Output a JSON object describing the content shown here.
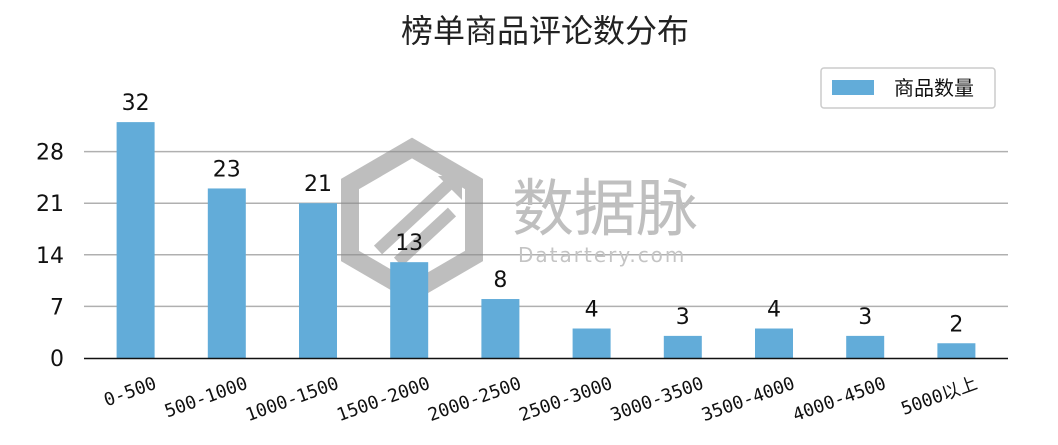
{
  "chart_data": {
    "type": "bar",
    "title": "榜单商品评论数分布",
    "categories": [
      "0-500",
      "500-1000",
      "1000-1500",
      "1500-2000",
      "2000-2500",
      "2500-3000",
      "3000-3500",
      "3500-4000",
      "4000-4500",
      "5000以上"
    ],
    "series": [
      {
        "name": "商品数量",
        "values": [
          32,
          23,
          21,
          13,
          8,
          4,
          3,
          4,
          3,
          2
        ]
      }
    ],
    "yticks": [
      0,
      7,
      14,
      21,
      28
    ],
    "ylim": [
      0,
      35
    ],
    "grid": true,
    "legend": "top-right",
    "bar_color": "#62acd9",
    "grid_color": "#b0b0b0"
  },
  "watermark": {
    "name": "数据脉",
    "url": "Datartery.com"
  }
}
